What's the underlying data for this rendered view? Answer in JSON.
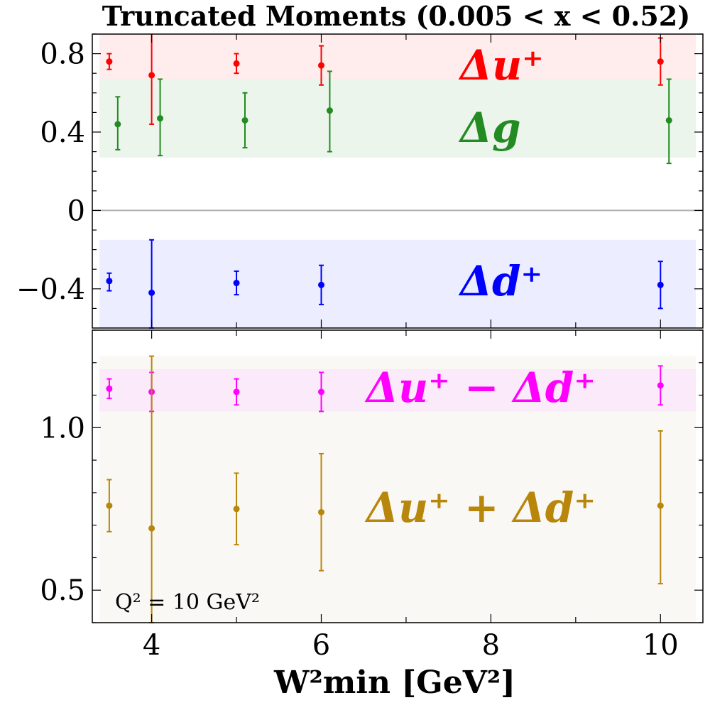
{
  "chart_data": {
    "title": "Truncated Moments (0.005 < x < 0.52)",
    "xlabel": "W²min  [GeV²]",
    "xlim": [
      3.3,
      10.5
    ],
    "xticks": [
      4,
      6,
      8,
      10
    ],
    "xtick_labels": [
      "4",
      "6",
      "8",
      "10"
    ],
    "annotation": "Q² = 10 GeV²",
    "panels": [
      {
        "type": "scatter",
        "ylim": [
          -0.6,
          0.9
        ],
        "yticks": [
          -0.4,
          0,
          0.4,
          0.8
        ],
        "ytick_labels": [
          "−0.4",
          "0",
          "0.4",
          "0.8"
        ],
        "zero_line": true,
        "series": [
          {
            "name": "Δu⁺",
            "color": "#ff0000",
            "band": [
              0.67,
              0.9
            ],
            "band_color": "#ffe6e6",
            "points": [
              {
                "x": 3.5,
                "y": 0.76,
                "lo": 0.72,
                "hi": 0.8
              },
              {
                "x": 4.0,
                "y": 0.69,
                "lo": 0.44,
                "hi": 0.92
              },
              {
                "x": 5.0,
                "y": 0.75,
                "lo": 0.7,
                "hi": 0.8
              },
              {
                "x": 6.0,
                "y": 0.74,
                "lo": 0.64,
                "hi": 0.84
              },
              {
                "x": 10.0,
                "y": 0.76,
                "lo": 0.64,
                "hi": 0.88
              }
            ]
          },
          {
            "name": "Δg",
            "color": "#228b22",
            "band": [
              0.27,
              0.67
            ],
            "band_color": "#e6f2e6",
            "points": [
              {
                "x": 3.6,
                "y": 0.44,
                "lo": 0.31,
                "hi": 0.58
              },
              {
                "x": 4.1,
                "y": 0.47,
                "lo": 0.28,
                "hi": 0.67
              },
              {
                "x": 5.1,
                "y": 0.46,
                "lo": 0.32,
                "hi": 0.6
              },
              {
                "x": 6.1,
                "y": 0.51,
                "lo": 0.3,
                "hi": 0.71
              },
              {
                "x": 10.1,
                "y": 0.46,
                "lo": 0.24,
                "hi": 0.67
              }
            ]
          },
          {
            "name": "Δd⁺",
            "color": "#0000ff",
            "band": [
              -0.6,
              -0.15
            ],
            "band_color": "#e6e8ff",
            "points": [
              {
                "x": 3.5,
                "y": -0.36,
                "lo": -0.41,
                "hi": -0.32
              },
              {
                "x": 4.0,
                "y": -0.42,
                "lo": -0.6,
                "hi": -0.15
              },
              {
                "x": 5.0,
                "y": -0.37,
                "lo": -0.43,
                "hi": -0.31
              },
              {
                "x": 6.0,
                "y": -0.38,
                "lo": -0.48,
                "hi": -0.28
              },
              {
                "x": 10.0,
                "y": -0.38,
                "lo": -0.5,
                "hi": -0.26
              }
            ]
          }
        ]
      },
      {
        "type": "scatter",
        "ylim": [
          0.4,
          1.3
        ],
        "yticks": [
          0.5,
          1.0
        ],
        "ytick_labels": [
          "0.5",
          "1.0"
        ],
        "zero_line": false,
        "series": [
          {
            "name": "Δu⁺ − Δd⁺",
            "color": "#ff00ff",
            "band": [
              1.05,
              1.18
            ],
            "band_color": "#fbe6fb",
            "points": [
              {
                "x": 3.5,
                "y": 1.12,
                "lo": 1.09,
                "hi": 1.15
              },
              {
                "x": 4.0,
                "y": 1.11,
                "lo": 1.05,
                "hi": 1.17
              },
              {
                "x": 5.0,
                "y": 1.11,
                "lo": 1.07,
                "hi": 1.15
              },
              {
                "x": 6.0,
                "y": 1.11,
                "lo": 1.05,
                "hi": 1.17
              },
              {
                "x": 10.0,
                "y": 1.13,
                "lo": 1.07,
                "hi": 1.19
              }
            ]
          },
          {
            "name": "Δu⁺ + Δd⁺",
            "color": "#b8860b",
            "band": [
              0.4,
              1.22
            ],
            "band_color": "#f8f6f0",
            "points": [
              {
                "x": 3.5,
                "y": 0.76,
                "lo": 0.68,
                "hi": 0.84
              },
              {
                "x": 4.0,
                "y": 0.69,
                "lo": 0.4,
                "hi": 1.22
              },
              {
                "x": 5.0,
                "y": 0.75,
                "lo": 0.64,
                "hi": 0.86
              },
              {
                "x": 6.0,
                "y": 0.74,
                "lo": 0.56,
                "hi": 0.92
              },
              {
                "x": 10.0,
                "y": 0.76,
                "lo": 0.52,
                "hi": 0.99
              }
            ]
          }
        ]
      }
    ]
  }
}
